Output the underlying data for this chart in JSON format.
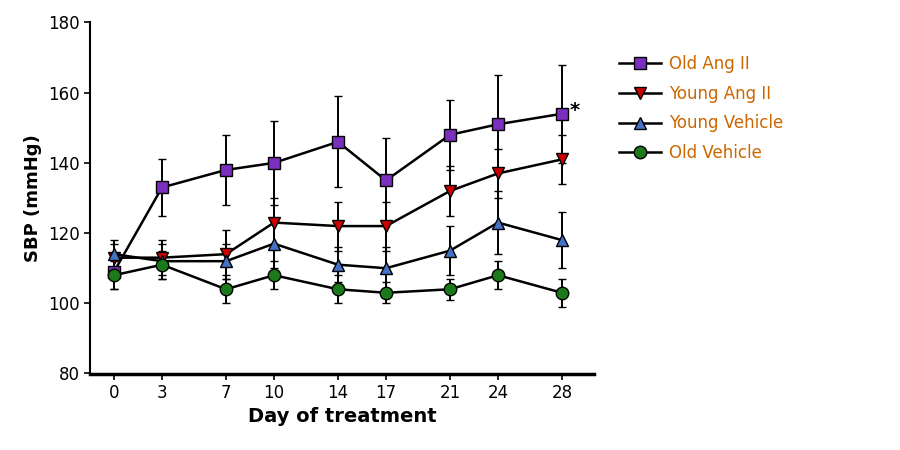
{
  "days": [
    0,
    3,
    7,
    10,
    14,
    17,
    21,
    24,
    28
  ],
  "old_ang2": [
    109,
    133,
    138,
    140,
    146,
    135,
    148,
    151,
    154
  ],
  "old_ang2_err": [
    5,
    8,
    10,
    12,
    13,
    12,
    10,
    14,
    14
  ],
  "young_ang2": [
    113,
    113,
    114,
    123,
    122,
    122,
    132,
    137,
    141
  ],
  "young_ang2_err": [
    4,
    5,
    7,
    7,
    7,
    7,
    7,
    7,
    7
  ],
  "young_vehicle": [
    114,
    112,
    112,
    117,
    111,
    110,
    115,
    123,
    118
  ],
  "young_vehicle_err": [
    4,
    5,
    5,
    7,
    5,
    6,
    7,
    9,
    8
  ],
  "old_vehicle": [
    108,
    111,
    104,
    108,
    104,
    103,
    104,
    108,
    103
  ],
  "old_vehicle_err": [
    4,
    4,
    4,
    4,
    4,
    3,
    3,
    4,
    4
  ],
  "old_ang2_color": "#7B2FBE",
  "young_ang2_color": "#CC0000",
  "young_vehicle_color": "#4472C4",
  "old_vehicle_color": "#1A7A1A",
  "legend_text_color": "#CC6600",
  "xlabel": "Day of treatment",
  "ylabel": "SBP (mmHg)",
  "ylim": [
    80,
    180
  ],
  "yticks": [
    80,
    100,
    120,
    140,
    160,
    180
  ],
  "line_color": "#000000",
  "background_color": "#ffffff",
  "star_annotation": "*"
}
